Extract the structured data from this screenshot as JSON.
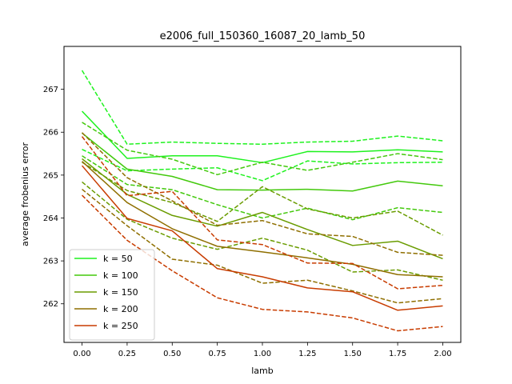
{
  "chart_data": {
    "type": "line",
    "title": "e2006_full_150360_16087_20_lamb_50",
    "xlabel": "lamb",
    "ylabel": "average frobenius error",
    "xlim": [
      -0.1,
      2.1
    ],
    "ylim": [
      261.1,
      268.0
    ],
    "x_ticks": [
      0.0,
      0.25,
      0.5,
      0.75,
      1.0,
      1.25,
      1.5,
      1.75,
      2.0
    ],
    "x_tick_labels": [
      "0.00",
      "0.25",
      "0.50",
      "0.75",
      "1.00",
      "1.25",
      "1.50",
      "1.75",
      "2.00"
    ],
    "y_ticks": [
      262,
      263,
      264,
      265,
      266,
      267
    ],
    "y_tick_labels": [
      "262",
      "263",
      "264",
      "265",
      "266",
      "267"
    ],
    "x": [
      0.0,
      0.25,
      0.5,
      0.75,
      1.0,
      1.25,
      1.5,
      1.75,
      2.0
    ],
    "grid": false,
    "legend_position": "lower-left",
    "series": [
      {
        "name": "k = 50",
        "color": "#1ef21e",
        "style": "solid",
        "values": [
          266.49,
          265.39,
          265.45,
          265.45,
          265.29,
          265.55,
          265.54,
          265.59,
          265.54
        ]
      },
      {
        "name": "",
        "color": "#1ef21e",
        "style": "dashed",
        "values": [
          267.44,
          265.72,
          265.77,
          265.74,
          265.72,
          265.77,
          265.79,
          265.91,
          265.8
        ]
      },
      {
        "name": "",
        "color": "#1ef21e",
        "style": "dashed",
        "values": [
          265.6,
          265.1,
          265.14,
          265.17,
          264.87,
          265.33,
          265.26,
          265.29,
          265.3
        ]
      },
      {
        "name": "k = 100",
        "color": "#43c90c",
        "style": "solid",
        "values": [
          265.98,
          265.14,
          264.97,
          264.66,
          264.65,
          264.67,
          264.63,
          264.86,
          264.75
        ]
      },
      {
        "name": "",
        "color": "#43c90c",
        "style": "dashed",
        "values": [
          266.23,
          265.58,
          265.37,
          265.01,
          265.3,
          265.11,
          265.3,
          265.5,
          265.36
        ]
      },
      {
        "name": "",
        "color": "#43c90c",
        "style": "dashed",
        "values": [
          265.45,
          264.78,
          264.66,
          264.31,
          264.0,
          264.23,
          263.96,
          264.24,
          264.13
        ]
      },
      {
        "name": "k = 150",
        "color": "#6a9c00",
        "style": "solid",
        "values": [
          265.38,
          264.55,
          264.06,
          263.81,
          264.13,
          263.73,
          263.36,
          263.46,
          263.05
        ]
      },
      {
        "name": "",
        "color": "#6a9c00",
        "style": "dashed",
        "values": [
          265.3,
          264.64,
          264.36,
          263.92,
          264.73,
          264.21,
          264.0,
          264.16,
          263.6
        ]
      },
      {
        "name": "",
        "color": "#6a9c00",
        "style": "dashed",
        "values": [
          264.84,
          263.97,
          263.53,
          263.27,
          263.53,
          263.25,
          262.74,
          262.79,
          262.55
        ]
      },
      {
        "name": "k = 200",
        "color": "#8f6f00",
        "style": "solid",
        "values": [
          265.32,
          264.36,
          263.75,
          263.34,
          263.21,
          263.07,
          262.92,
          262.68,
          262.63
        ]
      },
      {
        "name": "",
        "color": "#8f6f00",
        "style": "dashed",
        "values": [
          265.99,
          264.94,
          264.4,
          263.83,
          263.94,
          263.63,
          263.57,
          263.2,
          263.13
        ]
      },
      {
        "name": "",
        "color": "#8f6f00",
        "style": "dashed",
        "values": [
          264.67,
          263.82,
          263.04,
          262.9,
          262.48,
          262.55,
          262.3,
          262.02,
          262.12
        ]
      },
      {
        "name": "k = 250",
        "color": "#c83c00",
        "style": "solid",
        "values": [
          265.22,
          263.99,
          263.7,
          262.82,
          262.63,
          262.37,
          262.28,
          261.85,
          261.95
        ]
      },
      {
        "name": "",
        "color": "#c83c00",
        "style": "dashed",
        "values": [
          265.9,
          264.52,
          264.62,
          263.49,
          263.38,
          262.95,
          262.94,
          262.35,
          262.43
        ]
      },
      {
        "name": "",
        "color": "#c83c00",
        "style": "dashed",
        "values": [
          264.53,
          263.48,
          262.77,
          262.14,
          261.87,
          261.81,
          261.67,
          261.37,
          261.47
        ]
      }
    ]
  }
}
